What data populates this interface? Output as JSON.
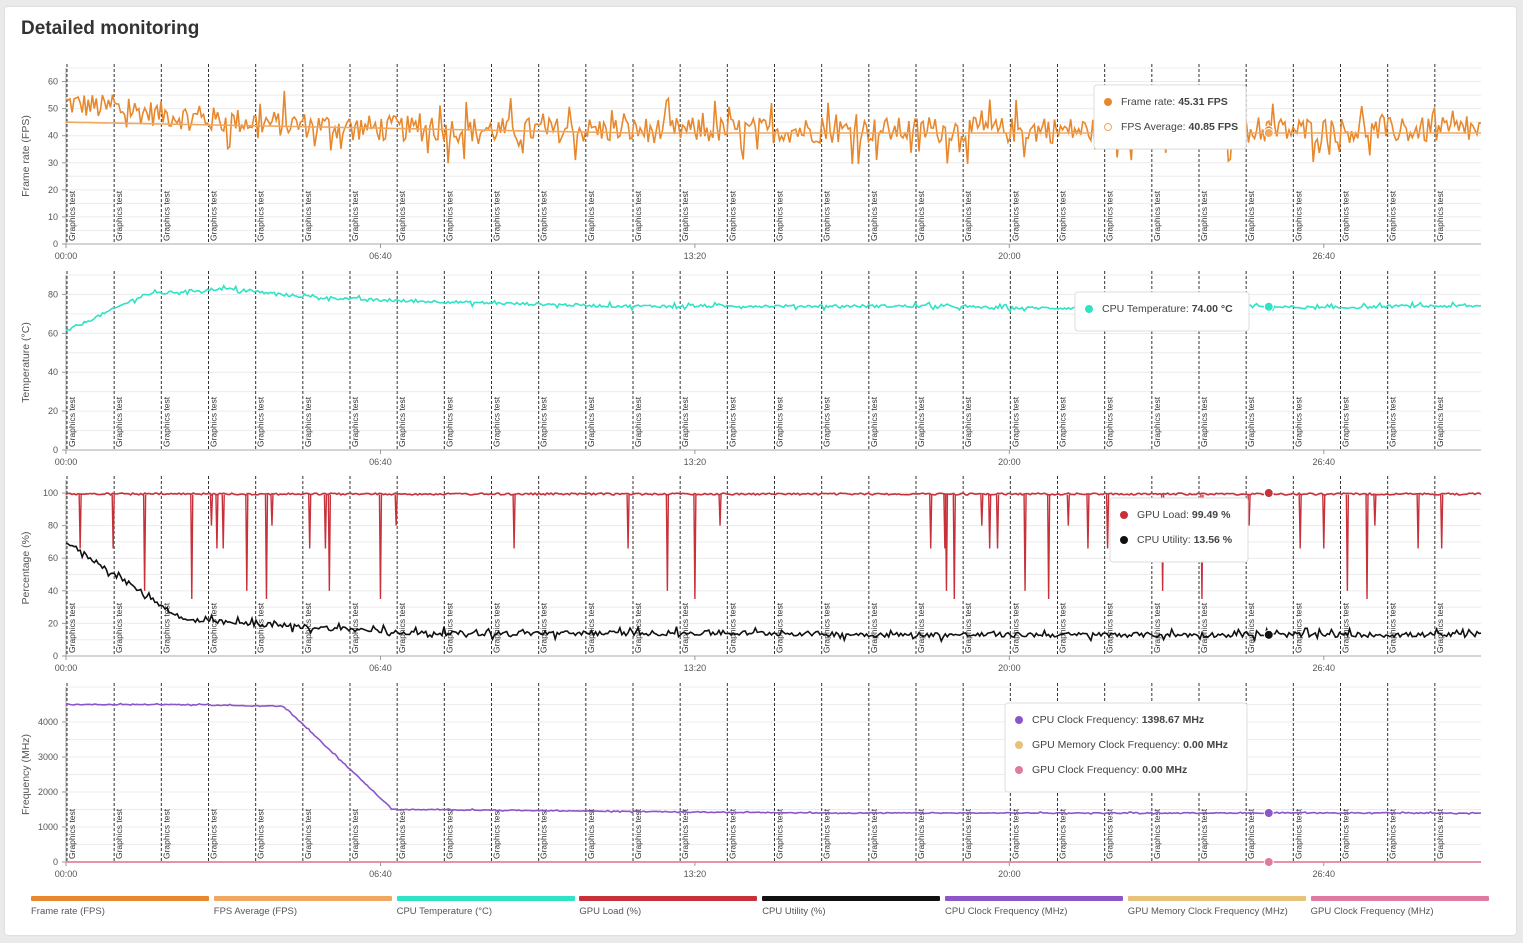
{
  "page": {
    "title": "Detailed monitoring"
  },
  "colors": {
    "frame_rate": "#e8882c",
    "fps_average": "#f0a860",
    "cpu_temperature": "#2fe3c4",
    "gpu_load": "#c8303a",
    "cpu_utility": "#111111",
    "cpu_clock": "#8e55c8",
    "gpu_mem_clock": "#e6c27a",
    "gpu_clock": "#e07aa0"
  },
  "legend": [
    {
      "label": "Frame rate (FPS)",
      "color": "#e8882c"
    },
    {
      "label": "FPS Average (FPS)",
      "color": "#f0a860"
    },
    {
      "label": "CPU Temperature (°C)",
      "color": "#2fe3c4"
    },
    {
      "label": "GPU Load (%)",
      "color": "#c8303a"
    },
    {
      "label": "CPU Utility (%)",
      "color": "#111111"
    },
    {
      "label": "CPU Clock Frequency (MHz)",
      "color": "#8e55c8"
    },
    {
      "label": "GPU Memory Clock Frequency (MHz)",
      "color": "#e6c27a"
    },
    {
      "label": "GPU Clock Frequency (MHz)",
      "color": "#e07aa0"
    }
  ],
  "chart_data": [
    {
      "type": "line",
      "ylabel": "Frame rate (FPS)",
      "ylim": [
        0,
        65
      ],
      "yticks": [
        0,
        10,
        20,
        30,
        40,
        50,
        60
      ],
      "xlim_seconds": [
        0,
        1800
      ],
      "xtick_labels": [
        "00:00",
        "06:40",
        "13:20",
        "20:00",
        "26:40"
      ],
      "xtick_seconds": [
        0,
        400,
        800,
        1200,
        1600
      ],
      "marker_label": "Graphics test",
      "marker_times_seconds": [
        0,
        60,
        120,
        180,
        240,
        300,
        360,
        420,
        480,
        540,
        600,
        660,
        720,
        780,
        840,
        900,
        960,
        1020,
        1080,
        1140,
        1200,
        1260,
        1320,
        1380,
        1440,
        1500,
        1560,
        1620,
        1680,
        1740
      ],
      "series": [
        {
          "name": "Frame rate",
          "unit": "FPS",
          "values": [
            52,
            46,
            43,
            42,
            42,
            42,
            42,
            42,
            42,
            42,
            42
          ],
          "fluctuation": 8
        },
        {
          "name": "FPS Average",
          "unit": "FPS",
          "values": [
            45,
            44,
            43,
            42,
            41,
            41,
            41,
            41,
            41,
            41,
            41
          ]
        }
      ],
      "tooltip": {
        "at_seconds": 1530,
        "items": [
          {
            "label": "Frame rate:",
            "value": "45.31 FPS"
          },
          {
            "label": "FPS Average:",
            "value": "40.85 FPS"
          }
        ]
      },
      "grid": true
    },
    {
      "type": "line",
      "ylabel": "Temperature (°C)",
      "ylim": [
        0,
        90
      ],
      "yticks": [
        0,
        20,
        40,
        60,
        80
      ],
      "xlim_seconds": [
        0,
        1800
      ],
      "xtick_labels": [
        "00:00",
        "06:40",
        "13:20",
        "20:00",
        "26:40"
      ],
      "xtick_seconds": [
        0,
        400,
        800,
        1200,
        1600
      ],
      "marker_label": "Graphics test",
      "marker_times_seconds": [
        0,
        60,
        120,
        180,
        240,
        300,
        360,
        420,
        480,
        540,
        600,
        660,
        720,
        780,
        840,
        900,
        960,
        1020,
        1080,
        1140,
        1200,
        1260,
        1320,
        1380,
        1440,
        1500,
        1560,
        1620,
        1680,
        1740
      ],
      "series": [
        {
          "name": "CPU Temperature",
          "unit": "°C",
          "values": [
            61,
            80,
            83,
            79,
            77,
            76,
            75,
            74,
            74,
            74,
            74,
            74,
            73,
            73,
            74,
            74,
            73,
            74,
            74
          ],
          "fluctuation": 1.2
        }
      ],
      "tooltip": {
        "at_seconds": 1530,
        "items": [
          {
            "label": "CPU Temperature:",
            "value": "74.00 °C"
          }
        ]
      },
      "grid": true
    },
    {
      "type": "line",
      "ylabel": "Percentage (%)",
      "ylim": [
        0,
        108
      ],
      "yticks": [
        0,
        20,
        40,
        60,
        80,
        100
      ],
      "xlim_seconds": [
        0,
        1800
      ],
      "xtick_labels": [
        "00:00",
        "06:40",
        "13:20",
        "20:00",
        "26:40"
      ],
      "xtick_seconds": [
        0,
        400,
        800,
        1200,
        1600
      ],
      "marker_label": "Graphics test",
      "marker_times_seconds": [
        0,
        60,
        120,
        180,
        240,
        300,
        360,
        420,
        480,
        540,
        600,
        660,
        720,
        780,
        840,
        900,
        960,
        1020,
        1080,
        1140,
        1200,
        1260,
        1320,
        1380,
        1440,
        1500,
        1560,
        1620,
        1680,
        1740
      ],
      "series": [
        {
          "name": "GPU Load",
          "unit": "%",
          "values": [
            100,
            100,
            100,
            100,
            100,
            100,
            100,
            100,
            100,
            100
          ],
          "dips_seconds": [
            18,
            60,
            100,
            160,
            185,
            192,
            200,
            230,
            255,
            262,
            310,
            330,
            335,
            400,
            420,
            570,
            715,
            765,
            800,
            832,
            1100,
            1118,
            1120,
            1130,
            1165,
            1175,
            1185,
            1220,
            1250,
            1275,
            1300,
            1325,
            1395,
            1445,
            1505,
            1570,
            1600,
            1630,
            1655,
            1665,
            1720,
            1750
          ]
        },
        {
          "name": "CPU Utility",
          "unit": "%",
          "values": [
            70,
            22,
            18,
            14,
            14,
            14,
            14,
            13,
            13,
            13,
            13,
            13,
            13
          ],
          "fluctuation": 2.5
        }
      ],
      "tooltip": {
        "at_seconds": 1530,
        "items": [
          {
            "label": "GPU Load:",
            "value": "99.49 %"
          },
          {
            "label": "CPU Utility:",
            "value": "13.56 %"
          }
        ]
      },
      "grid": true
    },
    {
      "type": "line",
      "ylabel": "Frequency (MHz)",
      "ylim": [
        0,
        5000
      ],
      "yticks": [
        0,
        1000,
        2000,
        3000,
        4000
      ],
      "xlim_seconds": [
        0,
        1800
      ],
      "xtick_labels": [
        "00:00",
        "06:40",
        "13:20",
        "20:00",
        "26:40"
      ],
      "xtick_seconds": [
        0,
        400,
        800,
        1200,
        1600
      ],
      "marker_label": "Graphics test",
      "marker_times_seconds": [
        0,
        60,
        120,
        180,
        240,
        300,
        360,
        420,
        480,
        540,
        600,
        660,
        720,
        780,
        840,
        900,
        960,
        1020,
        1080,
        1140,
        1200,
        1260,
        1320,
        1380,
        1440,
        1500,
        1560,
        1620,
        1680,
        1740
      ],
      "series": [
        {
          "name": "CPU Clock Frequency",
          "unit": "MHz",
          "values": [
            4500,
            4500,
            4450,
            1500,
            1480,
            1450,
            1420,
            1400,
            1400,
            1400,
            1400,
            1400,
            1400,
            1400
          ],
          "fluctuation": 20
        },
        {
          "name": "GPU Memory Clock Frequency",
          "unit": "MHz",
          "values": [
            0,
            0
          ]
        },
        {
          "name": "GPU Clock Frequency",
          "unit": "MHz",
          "values": [
            0,
            0
          ]
        }
      ],
      "tooltip": {
        "at_seconds": 1530,
        "items": [
          {
            "label": "CPU Clock Frequency:",
            "value": "1398.67 MHz"
          },
          {
            "label": "GPU Memory Clock Frequency:",
            "value": "0.00 MHz"
          },
          {
            "label": "GPU Clock Frequency:",
            "value": "0.00 MHz"
          }
        ]
      },
      "grid": true
    }
  ]
}
